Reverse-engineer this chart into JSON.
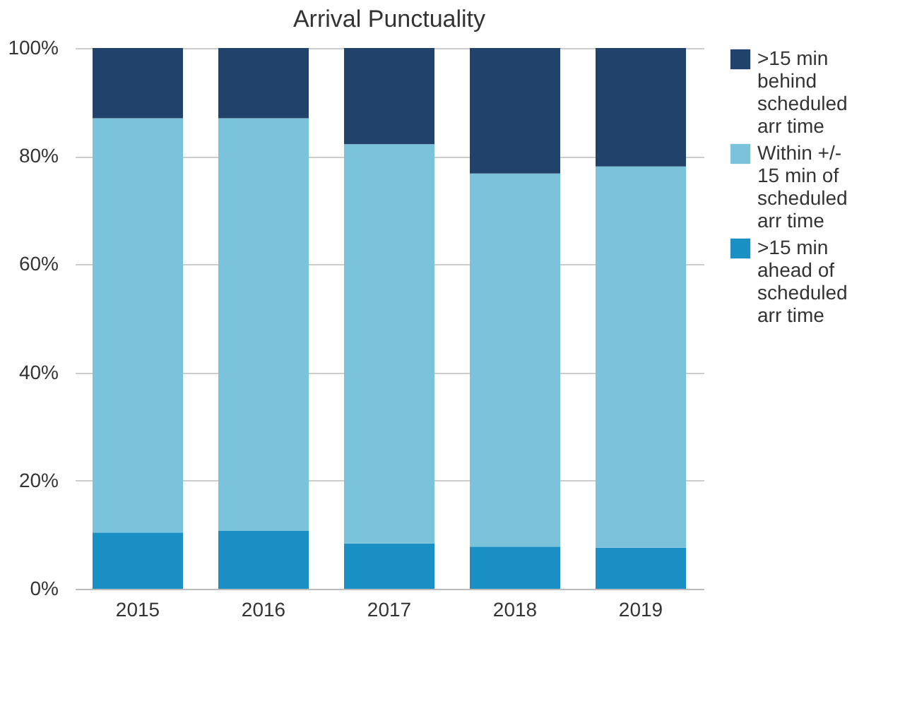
{
  "chart_data": {
    "type": "bar",
    "title": "Arrival Punctuality",
    "categories": [
      "2015",
      "2016",
      "2017",
      "2018",
      "2019"
    ],
    "stacked": true,
    "series": [
      {
        "name": ">15 min ahead of scheduled arr time",
        "color": "#1a8fc4",
        "values": [
          10.4,
          10.7,
          8.4,
          7.8,
          7.6
        ]
      },
      {
        "name": "Within +/- 15 min of scheduled arr time",
        "color": "#7ac3db",
        "values": [
          76.6,
          76.3,
          73.8,
          69.0,
          70.5
        ]
      },
      {
        "name": ">15 min behind scheduled arr time",
        "color": "#21426b",
        "values": [
          13.0,
          13.0,
          17.8,
          23.2,
          21.9
        ]
      }
    ],
    "ylim": [
      0,
      100
    ],
    "yticks": [
      {
        "value": 0,
        "label": "0%"
      },
      {
        "value": 20,
        "label": "20%"
      },
      {
        "value": 40,
        "label": "40%"
      },
      {
        "value": 60,
        "label": "60%"
      },
      {
        "value": 80,
        "label": "80%"
      },
      {
        "value": 100,
        "label": "100%"
      }
    ],
    "grid": "y",
    "legend": "right"
  }
}
